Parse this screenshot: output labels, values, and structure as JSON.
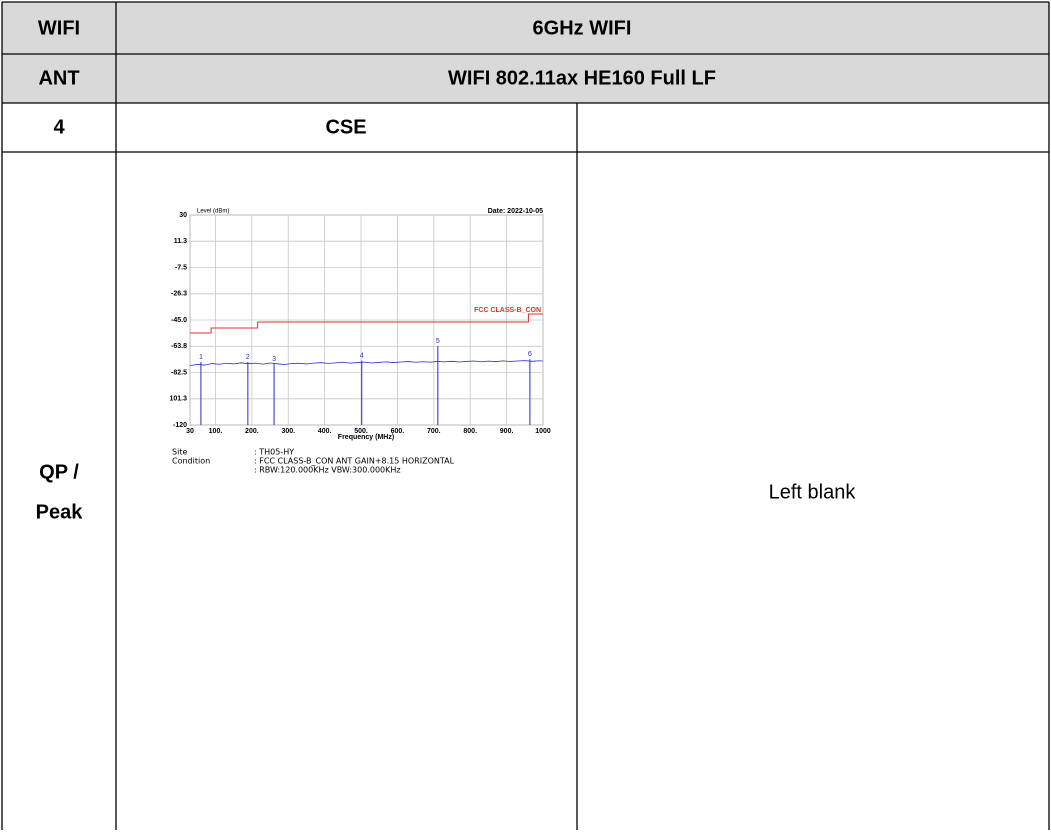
{
  "table": {
    "rows": [
      [
        "WIFI",
        "6GHz WIFI"
      ],
      [
        "ANT",
        "WIFI 802.11ax HE160 Full LF"
      ],
      [
        "4",
        "CSE"
      ],
      [
        "QP /",
        "Peak",
        "Left blank"
      ]
    ]
  },
  "chart_data": {
    "type": "line",
    "title": "Level (dBm)",
    "date": "Date: 2022-10-05",
    "xlabel": "Frequency (MHz)",
    "ylim": [
      -120,
      30
    ],
    "yticks": [
      30,
      11.3,
      -7.5,
      -26.3,
      {
        "value": -45,
        "label": "-45.0"
      },
      -63.8,
      -82.5,
      {
        "value": -101.3,
        "label": "101.3"
      },
      -120
    ],
    "xlim": [
      30,
      1000
    ],
    "xticks": [
      30,
      {
        "value": 100,
        "label": "100."
      },
      {
        "value": 200,
        "label": "200."
      },
      {
        "value": 300,
        "label": "300."
      },
      {
        "value": 400,
        "label": "400."
      },
      {
        "value": 500,
        "label": "500."
      },
      {
        "value": 600,
        "label": "600."
      },
      {
        "value": 700,
        "label": "700."
      },
      {
        "value": 800,
        "label": "800."
      },
      {
        "value": 900,
        "label": "900."
      },
      1000
    ],
    "grid": true,
    "limit": {
      "name": "FCC CLASS-B_CON",
      "color": "#e03030",
      "x": [
        30,
        88,
        88,
        216,
        216,
        960,
        960,
        1000
      ],
      "values": [
        -54.3,
        -54.3,
        -50.7,
        -50.7,
        -46.4,
        -46.4,
        -40.7,
        -40.7
      ]
    },
    "noise": {
      "color": "#2a2ad0",
      "x": [
        30,
        50,
        70,
        90,
        110,
        130,
        150,
        170,
        190,
        210,
        230,
        250,
        270,
        290,
        310,
        330,
        350,
        370,
        390,
        410,
        430,
        450,
        470,
        490,
        510,
        530,
        550,
        570,
        590,
        610,
        630,
        650,
        670,
        690,
        710,
        730,
        750,
        770,
        790,
        810,
        830,
        850,
        870,
        890,
        910,
        930,
        950,
        970,
        990,
        1000
      ],
      "values": [
        -77.5,
        -76.8,
        -77.2,
        -76.1,
        -76.6,
        -75.9,
        -76.4,
        -75.6,
        -76.2,
        -75.8,
        -76.5,
        -75.7,
        -76.3,
        -76.8,
        -76.1,
        -75.9,
        -76.4,
        -75.8,
        -75.5,
        -76.0,
        -75.6,
        -75.2,
        -75.8,
        -75.4,
        -75.1,
        -75.7,
        -75.3,
        -74.9,
        -75.4,
        -75.0,
        -74.7,
        -75.2,
        -74.8,
        -75.1,
        -74.6,
        -74.9,
        -74.5,
        -75.0,
        -74.6,
        -74.3,
        -74.8,
        -74.4,
        -74.7,
        -74.2,
        -74.6,
        -74.3,
        -74.0,
        -74.5,
        -74.1,
        -74.4
      ]
    },
    "markers": {
      "color": "#2a2ad0",
      "labels": [
        "1",
        "2",
        "3",
        "4",
        "5",
        "6"
      ],
      "x": [
        60,
        189,
        261,
        502,
        711,
        964
      ],
      "values": [
        -75,
        -75,
        -76.4,
        -74,
        -63.6,
        -73
      ]
    },
    "info": [
      {
        "label": "Site",
        "text": ": TH05-HY"
      },
      {
        "label": "Condition",
        "text": ": FCC CLASS-B_CON ANT GAIN+8.15 HORIZONTAL"
      },
      {
        "text": ": RBW:120.000KHz VBW:300.000KHz"
      }
    ]
  }
}
